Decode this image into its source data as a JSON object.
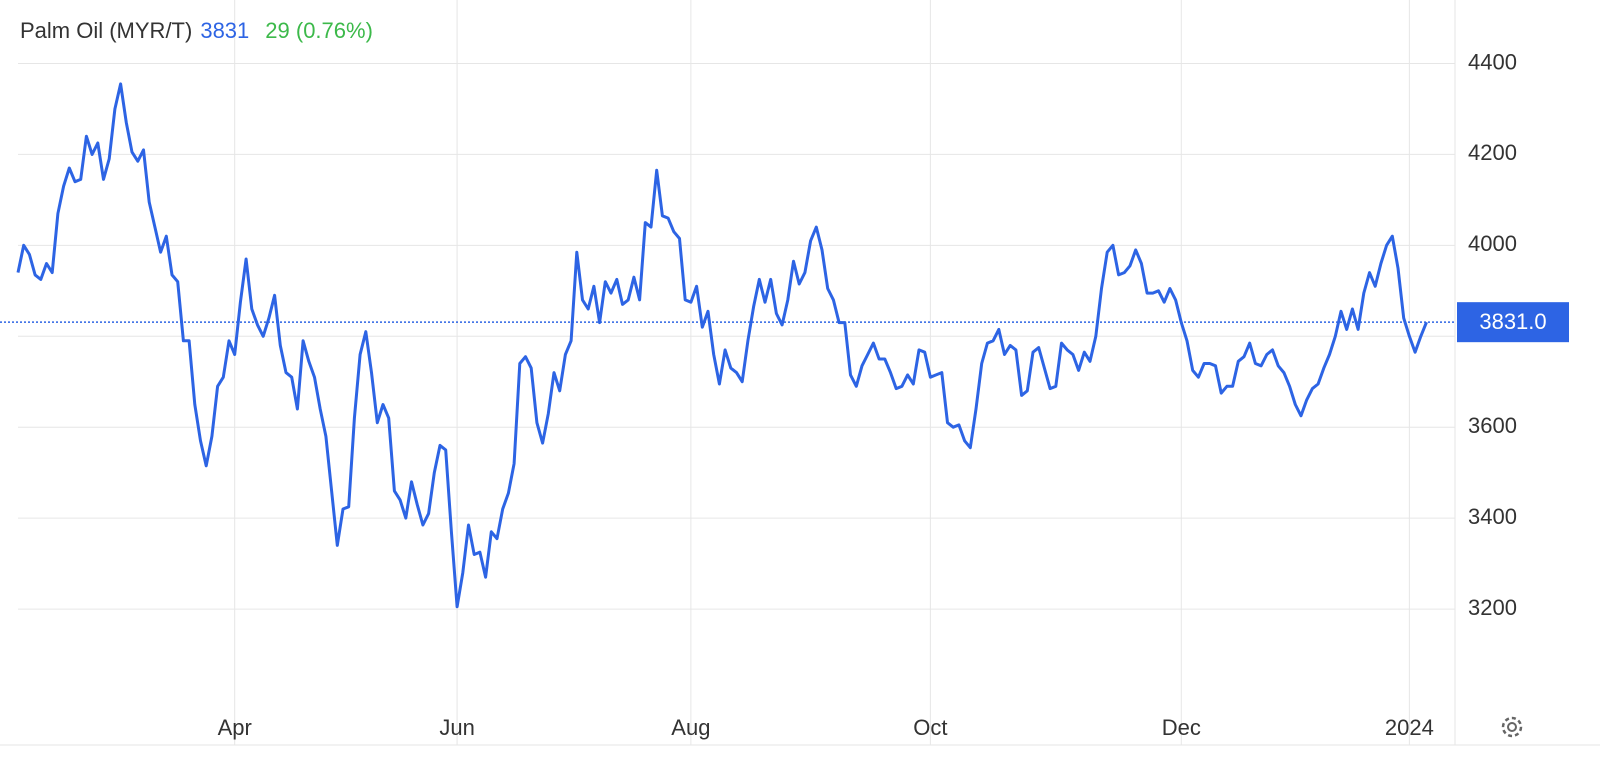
{
  "chart_data": {
    "type": "line",
    "title": "Palm Oil (MYR/T)",
    "price": "3831",
    "change": "29 (0.76%)",
    "last_value_label": "3831.0",
    "series": [
      {
        "name": "Palm Oil",
        "color": "#2d64e4",
        "values": [
          3940,
          4000,
          3980,
          3935,
          3925,
          3960,
          3940,
          4070,
          4130,
          4170,
          4140,
          4145,
          4240,
          4200,
          4225,
          4145,
          4190,
          4300,
          4355,
          4270,
          4205,
          4185,
          4210,
          4095,
          4040,
          3985,
          4020,
          3935,
          3920,
          3790,
          3790,
          3650,
          3570,
          3515,
          3580,
          3690,
          3710,
          3790,
          3760,
          3875,
          3970,
          3860,
          3825,
          3800,
          3840,
          3890,
          3780,
          3720,
          3710,
          3640,
          3790,
          3745,
          3710,
          3640,
          3580,
          3460,
          3340,
          3420,
          3425,
          3620,
          3760,
          3810,
          3720,
          3610,
          3650,
          3620,
          3460,
          3440,
          3400,
          3480,
          3430,
          3385,
          3410,
          3500,
          3560,
          3550,
          3370,
          3205,
          3280,
          3385,
          3320,
          3325,
          3270,
          3370,
          3355,
          3420,
          3455,
          3520,
          3740,
          3755,
          3730,
          3610,
          3565,
          3630,
          3720,
          3680,
          3760,
          3790,
          3985,
          3880,
          3860,
          3910,
          3830,
          3920,
          3895,
          3925,
          3870,
          3880,
          3930,
          3880,
          4050,
          4040,
          4165,
          4065,
          4060,
          4030,
          4015,
          3880,
          3875,
          3910,
          3820,
          3855,
          3760,
          3695,
          3770,
          3730,
          3720,
          3700,
          3790,
          3865,
          3925,
          3875,
          3925,
          3850,
          3825,
          3880,
          3965,
          3915,
          3940,
          4010,
          4040,
          3990,
          3905,
          3880,
          3830,
          3830,
          3715,
          3690,
          3735,
          3760,
          3785,
          3750,
          3750,
          3720,
          3685,
          3690,
          3715,
          3695,
          3770,
          3765,
          3710,
          3715,
          3720,
          3610,
          3600,
          3605,
          3570,
          3555,
          3640,
          3740,
          3785,
          3790,
          3815,
          3760,
          3780,
          3770,
          3670,
          3680,
          3765,
          3775,
          3730,
          3685,
          3690,
          3785,
          3770,
          3760,
          3725,
          3765,
          3745,
          3800,
          3905,
          3985,
          4000,
          3935,
          3940,
          3955,
          3990,
          3960,
          3895,
          3895,
          3900,
          3875,
          3905,
          3880,
          3830,
          3790,
          3725,
          3710,
          3740,
          3740,
          3735,
          3675,
          3690,
          3690,
          3745,
          3755,
          3785,
          3740,
          3735,
          3760,
          3770,
          3735,
          3720,
          3690,
          3650,
          3625,
          3660,
          3685,
          3695,
          3730,
          3760,
          3800,
          3855,
          3815,
          3860,
          3815,
          3895,
          3940,
          3910,
          3960,
          4000,
          4020,
          3950,
          3840,
          3800,
          3765,
          3800,
          3831
        ]
      }
    ],
    "xlim": [
      0,
      252
    ],
    "xticks": [
      {
        "value": 38,
        "label": "Apr"
      },
      {
        "value": 77,
        "label": "Jun"
      },
      {
        "value": 118,
        "label": "Aug"
      },
      {
        "value": 160,
        "label": "Oct"
      },
      {
        "value": 204,
        "label": "Dec"
      },
      {
        "value": 244,
        "label": "2024"
      }
    ],
    "ylim": [
      3000,
      4500
    ],
    "yticks": [
      3200,
      3400,
      3600,
      3800,
      4000,
      4200,
      4400
    ],
    "grid": true
  }
}
